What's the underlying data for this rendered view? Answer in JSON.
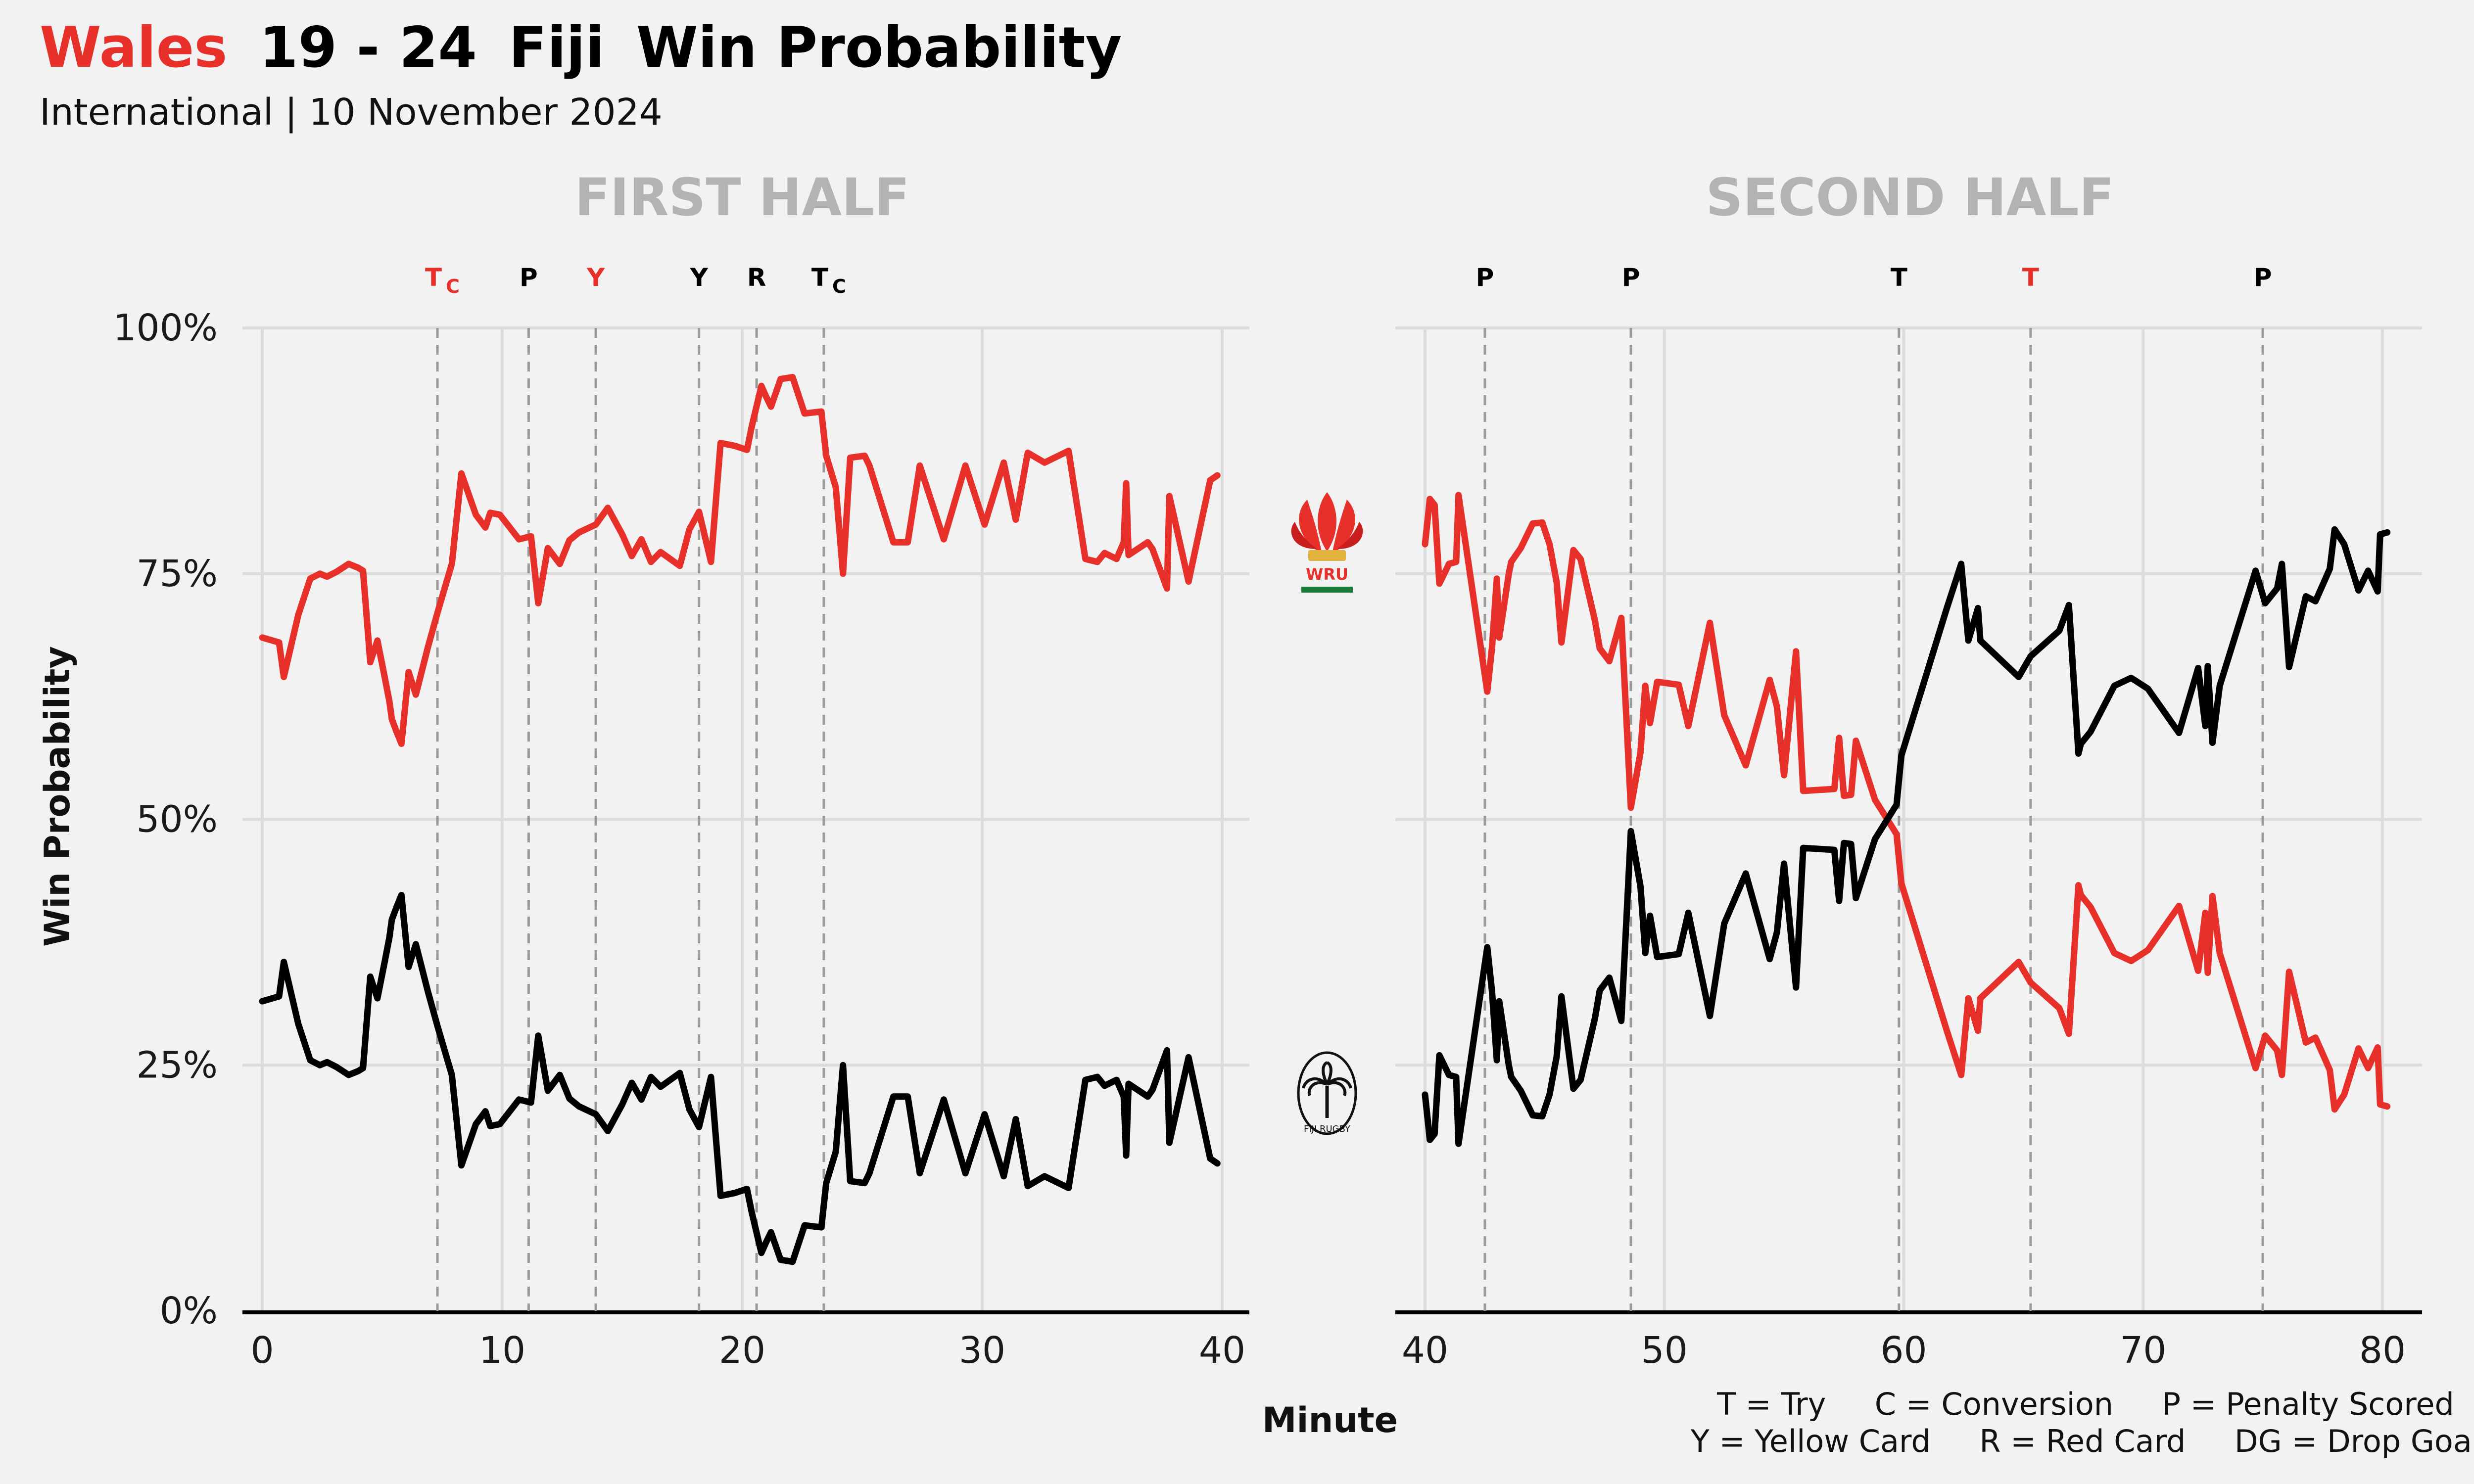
{
  "title": {
    "home": "Wales",
    "score": "19 - 24",
    "away": "Fiji",
    "suffix": "Win Probability"
  },
  "subtitle": "International | 10 November 2024",
  "colors": {
    "home": "#e8302a",
    "away": "#000000",
    "grid": "#dcdcdc",
    "vline": "#9a9a9a",
    "panel_title": "#b3b3b3"
  },
  "logos": {
    "home_text": "WRU",
    "away_text": "FIJI RUGBY"
  },
  "legend": {
    "line1": "T = Try     C = Conversion     P = Penalty Scored",
    "line2": "Y = Yellow Card     R = Red Card     DG = Drop Goal"
  },
  "chart_data": [
    {
      "type": "line",
      "panel": "FIRST HALF",
      "xlabel": "Minute",
      "ylabel": "Win Probability",
      "xlim": [
        0,
        40
      ],
      "ylim": [
        0,
        100
      ],
      "xticks": [
        0,
        10,
        20,
        30,
        40
      ],
      "yticks": [
        0,
        25,
        50,
        75,
        100
      ],
      "ytick_labels": [
        "0%",
        "25%",
        "50%",
        "75%",
        "100%"
      ],
      "events": [
        {
          "minute": 7.3,
          "label": "T",
          "sub": "C",
          "team": "Wales"
        },
        {
          "minute": 11.1,
          "label": "P",
          "sub": "",
          "team": "Fiji"
        },
        {
          "minute": 13.9,
          "label": "Y",
          "sub": "",
          "team": "Wales"
        },
        {
          "minute": 18.2,
          "label": "Y",
          "sub": "",
          "team": "Fiji"
        },
        {
          "minute": 20.6,
          "label": "R",
          "sub": "",
          "team": "Fiji"
        },
        {
          "minute": 23.4,
          "label": "T",
          "sub": "C",
          "team": "Fiji"
        }
      ],
      "series": [
        {
          "name": "Wales",
          "color": "#e8302a",
          "x": [
            0,
            0.7,
            0.9,
            1.5,
            2,
            2.4,
            2.7,
            3.1,
            3.6,
            4,
            4.2,
            4.5,
            4.8,
            5.1,
            5.3,
            5.4,
            5.6,
            5.8,
            6.1,
            6.4,
            6.9,
            7.3,
            7.9,
            8.3,
            8.9,
            9.3,
            9.5,
            9.9,
            10.7,
            11.2,
            11.5,
            11.9,
            12.4,
            12.8,
            13,
            13.2,
            13.9,
            14.4,
            15,
            15.4,
            15.8,
            16.2,
            16.6,
            17.4,
            17.8,
            18.2,
            18.7,
            19.1,
            19.7,
            20.2,
            20.4,
            20.8,
            21,
            21.2,
            21.6,
            22.1,
            22.6,
            23.3,
            23.5,
            23.9,
            24.2,
            24.5,
            25.1,
            25.3,
            26.3,
            26.9,
            27.4,
            28.4,
            29.3,
            30.1,
            30.9,
            31.4,
            31.9,
            32.6,
            33.6,
            34.3,
            34.8,
            35.1,
            35.6,
            35.9,
            36,
            36.1,
            36.9,
            37.1,
            37.7,
            37.8,
            38.6,
            39.5,
            39.8
          ],
          "y": [
            68.5,
            68,
            64.5,
            70.8,
            74.5,
            75,
            74.7,
            75.2,
            76,
            75.6,
            75.3,
            66,
            68.2,
            64.5,
            62,
            60.2,
            58.9,
            57.7,
            65,
            62.7,
            67.5,
            71,
            76,
            85.2,
            81,
            79.7,
            81.2,
            81,
            78.5,
            78.8,
            72,
            77.6,
            76,
            78.4,
            78.8,
            79.2,
            80,
            81.7,
            79,
            76.8,
            78.5,
            76.2,
            77.2,
            75.8,
            79.5,
            81.3,
            76.2,
            88.3,
            88,
            87.6,
            90,
            94.1,
            93,
            92,
            94.8,
            95,
            91.3,
            91.5,
            87,
            83.8,
            75,
            86.8,
            87,
            86,
            78.2,
            78.2,
            86,
            78.5,
            86,
            80,
            86.3,
            80.5,
            87.3,
            86.3,
            87.5,
            76.5,
            76.2,
            77.1,
            76.5,
            78.2,
            84.2,
            76.9,
            78.2,
            77.5,
            73.5,
            82.9,
            74.2,
            84.5,
            85
          ]
        },
        {
          "name": "Fiji",
          "color": "#000000",
          "x": [
            0,
            0.7,
            0.9,
            1.5,
            2,
            2.4,
            2.7,
            3.1,
            3.6,
            4,
            4.2,
            4.5,
            4.8,
            5.1,
            5.3,
            5.4,
            5.6,
            5.8,
            6.1,
            6.4,
            6.9,
            7.3,
            7.9,
            8.3,
            8.9,
            9.3,
            9.5,
            9.9,
            10.7,
            11.2,
            11.5,
            11.9,
            12.4,
            12.8,
            13,
            13.2,
            13.9,
            14.4,
            15,
            15.4,
            15.8,
            16.2,
            16.6,
            17.4,
            17.8,
            18.2,
            18.7,
            19.1,
            19.7,
            20.2,
            20.4,
            20.8,
            21,
            21.2,
            21.6,
            22.1,
            22.6,
            23.3,
            23.5,
            23.9,
            24.2,
            24.5,
            25.1,
            25.3,
            26.3,
            26.9,
            27.4,
            28.4,
            29.3,
            30.1,
            30.9,
            31.4,
            31.9,
            32.6,
            33.6,
            34.3,
            34.8,
            35.1,
            35.6,
            35.9,
            36,
            36.1,
            36.9,
            37.1,
            37.7,
            37.8,
            38.6,
            39.5,
            39.8
          ],
          "y": [
            31.5,
            32,
            35.5,
            29.2,
            25.5,
            25,
            25.3,
            24.8,
            24,
            24.4,
            24.7,
            34,
            31.8,
            35.5,
            38,
            39.8,
            41.1,
            42.3,
            35,
            37.3,
            32.5,
            29,
            24,
            14.8,
            19,
            20.3,
            18.8,
            19,
            21.5,
            21.2,
            28,
            22.4,
            24,
            21.6,
            21.2,
            20.8,
            20,
            18.3,
            21,
            23.2,
            21.5,
            23.8,
            22.8,
            24.2,
            20.5,
            18.7,
            23.8,
            11.7,
            12,
            12.4,
            10,
            5.9,
            7,
            8,
            5.2,
            5,
            8.7,
            8.5,
            13,
            16.2,
            25,
            13.2,
            13,
            14,
            21.8,
            21.8,
            14,
            21.5,
            14,
            20,
            13.7,
            19.5,
            12.7,
            13.7,
            12.5,
            23.5,
            23.8,
            22.9,
            23.5,
            21.8,
            15.8,
            23.1,
            21.8,
            22.5,
            26.5,
            17.1,
            25.8,
            15.5,
            15
          ]
        }
      ]
    },
    {
      "type": "line",
      "panel": "SECOND HALF",
      "xlabel": "Minute",
      "ylabel": "Win Probability",
      "xlim": [
        40,
        80
      ],
      "ylim": [
        0,
        100
      ],
      "xticks": [
        40,
        50,
        60,
        70,
        80
      ],
      "yticks": [
        0,
        25,
        50,
        75,
        100
      ],
      "events": [
        {
          "minute": 42.5,
          "label": "P",
          "sub": "",
          "team": "Fiji"
        },
        {
          "minute": 48.6,
          "label": "P",
          "sub": "",
          "team": "Fiji"
        },
        {
          "minute": 59.8,
          "label": "T",
          "sub": "",
          "team": "Fiji"
        },
        {
          "minute": 65.3,
          "label": "T",
          "sub": "",
          "team": "Wales"
        },
        {
          "minute": 75,
          "label": "P",
          "sub": "",
          "team": "Fiji"
        }
      ],
      "series": [
        {
          "name": "Wales",
          "color": "#e8302a",
          "x": [
            40,
            40.2,
            40.4,
            40.6,
            41,
            41.3,
            41.4,
            42.6,
            42.8,
            43,
            43.1,
            43.5,
            43.6,
            44,
            44.5,
            44.9,
            45.2,
            45.5,
            45.7,
            46.2,
            46.5,
            47.1,
            47.3,
            47.7,
            48.2,
            48.6,
            49,
            49.2,
            49.4,
            49.7,
            50.6,
            51,
            51.9,
            52.5,
            53.4,
            54.4,
            54.7,
            55,
            55.5,
            55.8,
            57.1,
            57.3,
            57.5,
            57.8,
            58,
            58.8,
            59.7,
            59.9,
            61.8,
            62.4,
            62.7,
            63.1,
            63.2,
            64.8,
            65.3,
            66.5,
            66.9,
            67.3,
            67.4,
            67.8,
            68.8,
            69.5,
            70.2,
            71.5,
            72.3,
            72.6,
            72.7,
            72.9,
            73.2,
            74.7,
            75.1,
            75.6,
            75.8,
            76.1,
            76.8,
            77.2,
            77.8,
            78,
            78.4,
            79,
            79.4,
            79.8,
            79.9,
            80.2
          ],
          "y": [
            78,
            82.6,
            82,
            74,
            76,
            76.2,
            83,
            63,
            67.5,
            74.5,
            68.5,
            75,
            76.2,
            77.6,
            80.1,
            80.2,
            78,
            74.1,
            68,
            77.4,
            76.5,
            70.2,
            67.4,
            66.1,
            70.5,
            51.2,
            56.8,
            63.6,
            59.8,
            64,
            63.7,
            59.5,
            70,
            60.6,
            55.5,
            64.2,
            61.5,
            54.5,
            67.1,
            52.9,
            53.1,
            58.3,
            52.4,
            52.5,
            58,
            52,
            48.5,
            43.5,
            28.5,
            24,
            31.8,
            28.5,
            31.8,
            35.5,
            33.4,
            30.8,
            28.2,
            43.3,
            42.3,
            41.1,
            36.4,
            35.6,
            36.7,
            41.2,
            34.6,
            40.5,
            34.4,
            42.2,
            36.4,
            24.7,
            28,
            26.5,
            24,
            34.5,
            27.3,
            27.8,
            24.5,
            20.5,
            22,
            26.7,
            24.7,
            26.8,
            21,
            20.8
          ]
        },
        {
          "name": "Fiji",
          "color": "#000000",
          "x": [
            40,
            40.2,
            40.4,
            40.6,
            41,
            41.3,
            41.4,
            42.6,
            42.8,
            43,
            43.1,
            43.5,
            43.6,
            44,
            44.5,
            44.9,
            45.2,
            45.5,
            45.7,
            46.2,
            46.5,
            47.1,
            47.3,
            47.7,
            48.2,
            48.6,
            49,
            49.2,
            49.4,
            49.7,
            50.6,
            51,
            51.9,
            52.5,
            53.4,
            54.4,
            54.7,
            55,
            55.5,
            55.8,
            57.1,
            57.3,
            57.5,
            57.8,
            58,
            58.8,
            59.7,
            59.9,
            61.8,
            62.4,
            62.7,
            63.1,
            63.2,
            64.8,
            65.3,
            66.5,
            66.9,
            67.3,
            67.4,
            67.8,
            68.8,
            69.5,
            70.2,
            71.5,
            72.3,
            72.6,
            72.7,
            72.9,
            73.2,
            74.7,
            75.1,
            75.6,
            75.8,
            76.1,
            76.8,
            77.2,
            77.8,
            78,
            78.4,
            79,
            79.4,
            79.8,
            79.9,
            80.2
          ],
          "y": [
            22,
            17.4,
            18,
            26,
            24,
            23.8,
            17,
            37,
            32.5,
            25.5,
            31.5,
            25,
            23.8,
            22.4,
            19.9,
            19.8,
            22,
            25.9,
            32,
            22.6,
            23.5,
            29.8,
            32.6,
            33.9,
            29.5,
            48.8,
            43.2,
            36.4,
            40.2,
            36,
            36.3,
            40.5,
            30,
            39.4,
            44.5,
            35.8,
            38.5,
            45.5,
            32.9,
            47.1,
            46.9,
            41.7,
            47.6,
            47.5,
            42,
            48,
            51.5,
            56.5,
            71.5,
            76,
            68.2,
            71.5,
            68.2,
            64.5,
            66.6,
            69.2,
            71.8,
            56.7,
            57.7,
            58.9,
            63.6,
            64.4,
            63.3,
            58.8,
            65.4,
            59.5,
            65.6,
            57.8,
            63.6,
            75.3,
            72,
            73.5,
            76,
            65.5,
            72.7,
            72.2,
            75.5,
            79.5,
            78,
            73.3,
            75.3,
            73.2,
            79,
            79.2
          ]
        }
      ]
    }
  ]
}
